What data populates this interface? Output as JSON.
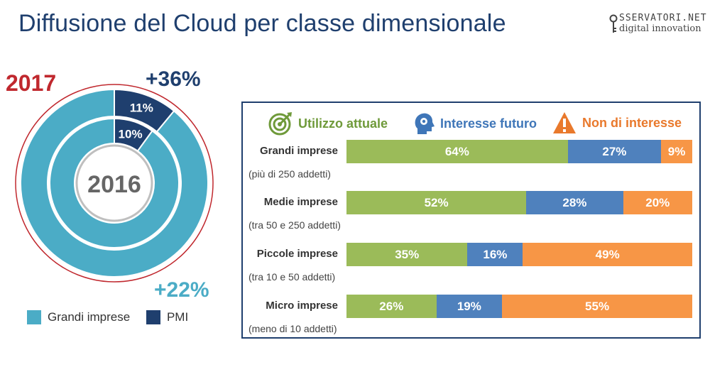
{
  "title": "Diffusione del Cloud per classe dimensionale",
  "logo": {
    "line1": "SSERVATORI.NET",
    "line2": "digital innovation"
  },
  "donut": {
    "year_outer": "2017",
    "year_inner": "2016",
    "growth_pmi": "+36%",
    "growth_grandi": "+22%",
    "colors": {
      "grandi": "#4bacc6",
      "pmi": "#1f3f6e",
      "accent_2017": "#c0282e"
    }
  },
  "legend": [
    {
      "label": "Grandi imprese",
      "color": "#4bacc6"
    },
    {
      "label": "PMI",
      "color": "#1f3f6e"
    }
  ],
  "bars_legend": [
    {
      "label": "Utilizzo attuale",
      "color": "#6f9a3a",
      "icon": "target-icon"
    },
    {
      "label": "Interesse futuro",
      "color": "#3f76b8",
      "icon": "head-gears-icon"
    },
    {
      "label": "Non di interesse",
      "color": "#e9792c",
      "icon": "warning-icon"
    }
  ],
  "chart_data": [
    {
      "type": "pie",
      "variant": "nested-donut",
      "rings": [
        {
          "year": "2017",
          "labels": [
            "PMI",
            "Grandi imprese"
          ],
          "values": [
            11,
            89
          ],
          "data_labels": [
            "11%",
            ""
          ]
        },
        {
          "year": "2016",
          "labels": [
            "PMI",
            "Grandi imprese"
          ],
          "values": [
            10,
            90
          ],
          "data_labels": [
            "10%",
            ""
          ]
        }
      ]
    },
    {
      "type": "bar",
      "orientation": "horizontal",
      "stacked": true,
      "categories": [
        "Grandi imprese",
        "Medie imprese",
        "Piccole imprese",
        "Micro imprese"
      ],
      "subtitles": [
        "(più di 250 addetti)",
        "(tra 50 e 250 addetti)",
        "(tra 10 e 50 addetti)",
        "(meno di 10 addetti)"
      ],
      "series": [
        {
          "name": "Utilizzo attuale",
          "values": [
            64,
            52,
            35,
            26
          ],
          "color": "#9bbb59"
        },
        {
          "name": "Interesse futuro",
          "values": [
            27,
            28,
            16,
            19
          ],
          "color": "#4f81bd"
        },
        {
          "name": "Non di interesse",
          "values": [
            9,
            20,
            49,
            55
          ],
          "color": "#f79646"
        }
      ]
    }
  ]
}
